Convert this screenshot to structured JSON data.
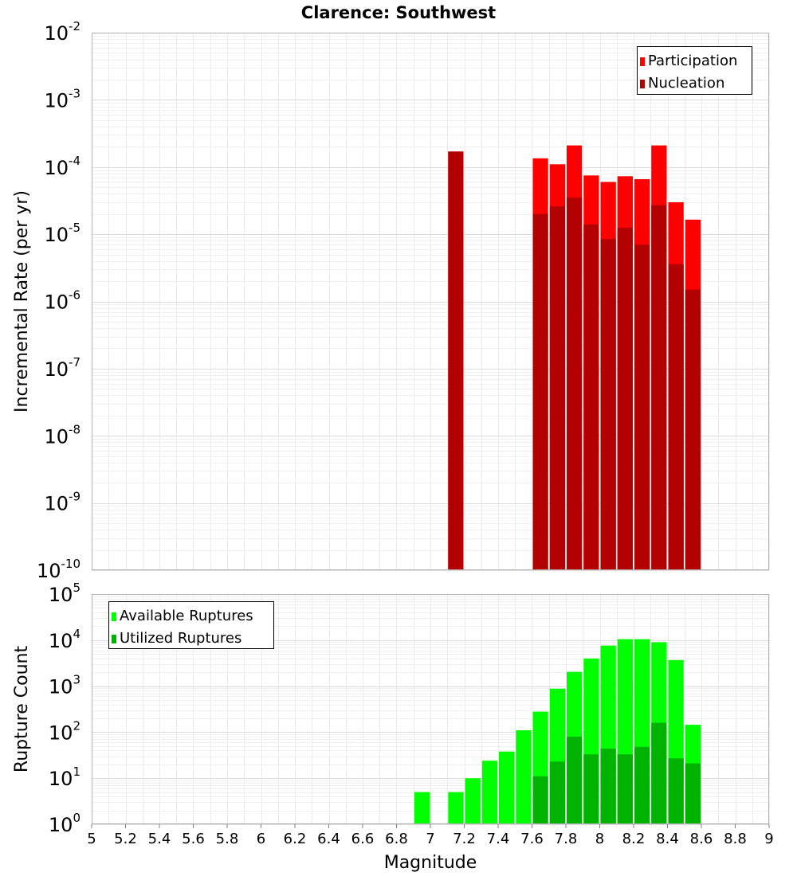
{
  "title": "Clarence: Southwest",
  "xlabel": "Magnitude",
  "x_ticks": [
    5,
    5.2,
    5.4,
    5.6,
    5.8,
    6,
    6.2,
    6.4,
    6.6,
    6.8,
    7,
    7.2,
    7.4,
    7.6,
    7.8,
    8,
    8.2,
    8.4,
    8.6,
    8.8,
    9
  ],
  "xlim": [
    5,
    9
  ],
  "colors": {
    "participation": "#ff0000",
    "nucleation": "#b30000",
    "available": "#00ff00",
    "utilized": "#00b300"
  },
  "chart_data": [
    {
      "type": "bar",
      "ylabel": "Incremental Rate (per yr)",
      "yscale": "log",
      "ylim": [
        1e-10,
        0.01
      ],
      "y_tick_exponents": [
        -10,
        -9,
        -8,
        -7,
        -6,
        -5,
        -4,
        -3,
        -2
      ],
      "legend": {
        "placement": "top-right"
      },
      "bin_width": 0.1,
      "series": [
        {
          "name": "Participation",
          "x": [
            7.15,
            7.65,
            7.75,
            7.85,
            7.95,
            8.05,
            8.15,
            8.25,
            8.35,
            8.45,
            8.55
          ],
          "values": [
            0.00017,
            0.000135,
            0.00011,
            0.00021,
            7.5e-05,
            6e-05,
            7.3e-05,
            6.6e-05,
            0.00021,
            3e-05,
            1.65e-05
          ]
        },
        {
          "name": "Nucleation",
          "x": [
            7.15,
            7.65,
            7.75,
            7.85,
            7.95,
            8.05,
            8.15,
            8.25,
            8.35,
            8.45,
            8.55
          ],
          "values": [
            0.00017,
            2e-05,
            2.6e-05,
            3.5e-05,
            1.4e-05,
            8.5e-06,
            1.25e-05,
            7e-06,
            2.7e-05,
            3.6e-06,
            1.5e-06
          ]
        }
      ]
    },
    {
      "type": "bar",
      "ylabel": "Rupture Count",
      "yscale": "log",
      "ylim": [
        1,
        100000
      ],
      "y_tick_exponents": [
        0,
        1,
        2,
        3,
        4,
        5
      ],
      "legend": {
        "placement": "top-left"
      },
      "bin_width": 0.1,
      "series": [
        {
          "name": "Available Ruptures",
          "x": [
            6.95,
            7.15,
            7.25,
            7.35,
            7.45,
            7.55,
            7.65,
            7.75,
            7.85,
            7.95,
            8.05,
            8.15,
            8.25,
            8.35,
            8.45,
            8.55
          ],
          "values": [
            5,
            5,
            10,
            24,
            38,
            110,
            280,
            880,
            2050,
            4000,
            7600,
            10500,
            10500,
            9000,
            3700,
            145
          ]
        },
        {
          "name": "Utilized Ruptures",
          "x": [
            7.15,
            7.65,
            7.75,
            7.85,
            7.95,
            8.05,
            8.15,
            8.25,
            8.35,
            8.45,
            8.55
          ],
          "values": [
            1,
            11,
            23,
            80,
            33,
            44,
            33,
            48,
            160,
            27,
            21
          ]
        }
      ]
    }
  ]
}
